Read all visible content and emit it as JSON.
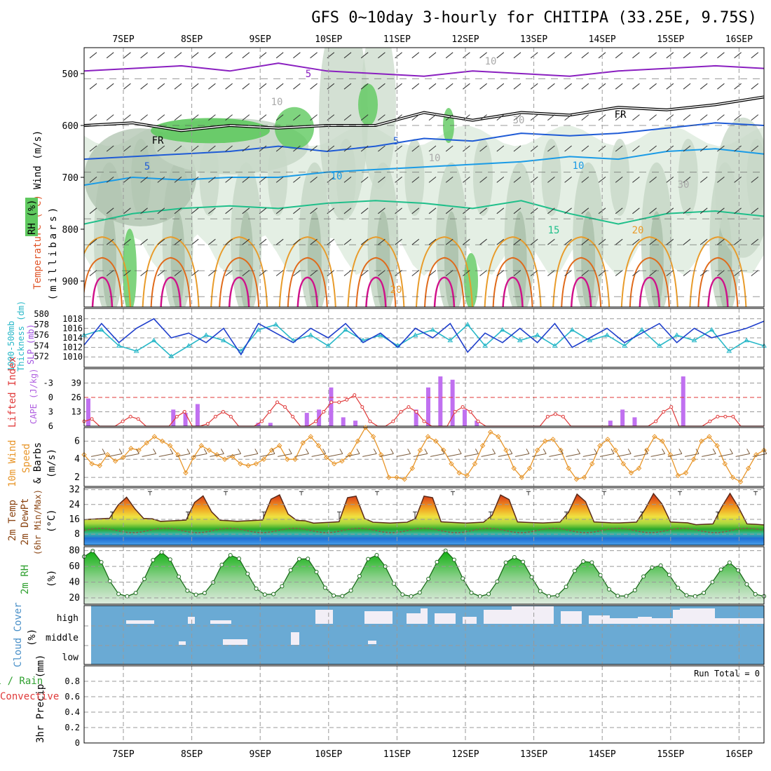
{
  "title": "GFS 0~10day 3-hourly for CHITIPA (33.25E, 9.75S)",
  "dates": [
    "7SEP",
    "8SEP",
    "9SEP",
    "10SEP",
    "11SEP",
    "12SEP",
    "13SEP",
    "14SEP",
    "15SEP",
    "16SEP"
  ],
  "colors": {
    "rh_dark": "#a9bfa9",
    "rh_mid": "#c8d8c8",
    "rh_light": "#e4efe4",
    "rh_green": "#5fc95f",
    "temp_purple": "#8a1fc0",
    "temp_blue": "#1f5bd6",
    "temp_lightblue": "#1a9be6",
    "temp_teal": "#1fbf8a",
    "temp_orange": "#e89b2a",
    "temp_darkorange": "#e06a1a",
    "temp_magenta": "#d0108a",
    "slp": "#1f3fcc",
    "thickness": "#28b8c8",
    "cape": "#c070f0",
    "lifted_index": "#e03a3a",
    "wind10": "#e8962a",
    "cloud": "#6aaad4",
    "rh2m": "#2fc02f"
  },
  "panels": {
    "upper": {
      "y_label_wind": "Wind (m/s)",
      "y_label_temp": "Temperature (°C)",
      "y_label_mb": "(millibars)",
      "y_label_rh": "RH (%)",
      "contour_labels": [
        "5",
        "5",
        "5",
        "10",
        "10",
        "10",
        "15",
        "20",
        "20",
        "FR",
        "FR",
        "30",
        "30",
        "10",
        "10"
      ]
    },
    "slp": {
      "label_thk1": "1000-500mb",
      "label_thk2": "Thickness (dm)",
      "label_slp": "SLP (mb)"
    },
    "cape": {
      "label_li": "Lifted Index",
      "label_cape": "CAPE (J/kg)"
    },
    "wind10": {
      "label1": "10m Wind",
      "label2": "Speed",
      "label3": "& Barbs",
      "label4": "(m/s)"
    },
    "temp2m": {
      "label1": "2m Temp",
      "label2": "2m DewPt",
      "label3": "(6hr Min/Max)",
      "label4": "(°C)"
    },
    "rh2m": {
      "label1": "2m RH",
      "label2": "(%)"
    },
    "cloud": {
      "label1": "Cloud Cover",
      "label2": "(%)"
    },
    "precip": {
      "label1": "3hr Precip (mm)",
      "label2": "Total / Rain",
      "label3": "Convective",
      "run_total": "Run Total = 0"
    }
  },
  "chart_data": [
    {
      "type": "heatmap",
      "title": "Upper air: RH shading, temperature contours, wind barbs",
      "ylabel": "millibars",
      "y_ticks": [
        500,
        600,
        700,
        800,
        900
      ],
      "ylim": [
        450,
        950
      ],
      "isotherms": [
        {
          "name": "-5",
          "level_mb": [
            495,
            490,
            485,
            495,
            480,
            495,
            500,
            505,
            495,
            500,
            505,
            495,
            490,
            485,
            490
          ]
        },
        {
          "name": "FR",
          "level_mb": [
            600,
            595,
            610,
            600,
            605,
            600,
            600,
            575,
            590,
            575,
            580,
            565,
            570,
            560,
            545
          ]
        },
        {
          "name": "5",
          "level_mb": [
            665,
            660,
            655,
            650,
            640,
            650,
            640,
            625,
            630,
            615,
            620,
            615,
            605,
            595,
            600
          ]
        },
        {
          "name": "10",
          "level_mb": [
            715,
            700,
            705,
            700,
            700,
            690,
            685,
            680,
            675,
            670,
            660,
            665,
            650,
            645,
            655
          ]
        },
        {
          "name": "15",
          "level_mb": [
            790,
            770,
            760,
            755,
            760,
            750,
            745,
            750,
            760,
            745,
            770,
            790,
            770,
            765,
            775
          ]
        }
      ]
    },
    {
      "type": "line",
      "title": "SLP and 1000-500mb thickness",
      "series": [
        {
          "name": "SLP (mb)",
          "values": [
            1012.5,
            1017,
            1013,
            1016,
            1018,
            1014,
            1015,
            1013,
            1016,
            1010.5,
            1017,
            1015,
            1013,
            1016,
            1014,
            1017,
            1013,
            1015,
            1012,
            1016,
            1014,
            1017,
            1011,
            1015,
            1013,
            1016,
            1013,
            1017,
            1012,
            1014,
            1016,
            1013,
            1015,
            1017,
            1013,
            1016,
            1014,
            1015,
            1016,
            1017.5
          ]
        },
        {
          "name": "1000-500mb Thickness (dm)",
          "values": [
            576,
            577,
            574,
            573,
            575,
            572,
            574,
            576,
            575,
            573,
            577,
            578,
            575,
            576,
            574,
            577,
            575,
            576,
            574,
            576,
            577,
            575,
            578,
            574,
            577,
            575,
            576,
            574,
            577,
            575,
            576,
            574,
            577,
            574,
            576,
            575,
            577,
            573,
            575,
            574
          ]
        }
      ],
      "y_ticks_slp": [
        1010,
        1012,
        1014,
        1016,
        1018
      ],
      "y_ticks_thk": [
        572,
        574,
        576,
        578,
        580
      ]
    },
    {
      "type": "bar",
      "title": "CAPE and Lifted Index",
      "y_ticks_cape": [
        13,
        26,
        39
      ],
      "y_ticks_li": [
        -3,
        0,
        3,
        6
      ],
      "cape_values": [
        25,
        0,
        0,
        0,
        0,
        0,
        0,
        15,
        12,
        20,
        0,
        0,
        0,
        0,
        3,
        3,
        0,
        0,
        12,
        15,
        35,
        8,
        5,
        0,
        0,
        0,
        0,
        15,
        35,
        45,
        42,
        15,
        5,
        0,
        0,
        0,
        0,
        0,
        0,
        0,
        0,
        0,
        0,
        5,
        15,
        8,
        0,
        0,
        0,
        45,
        0,
        0,
        0,
        0,
        0,
        0
      ]
    },
    {
      "type": "line",
      "title": "10m Wind Speed",
      "ylim": [
        1,
        7.5
      ],
      "y_ticks": [
        2,
        4,
        6
      ],
      "values": [
        4.5,
        3.5,
        3.3,
        4.5,
        3.8,
        4.2,
        5.2,
        5,
        5.8,
        6.5,
        6,
        5.5,
        4.5,
        2.5,
        4.2,
        5.5,
        5,
        4.5,
        4,
        4.3,
        3.5,
        3.3,
        3.5,
        4,
        5,
        5.5,
        4,
        4,
        5.8,
        6.5,
        5.5,
        4.2,
        3.5,
        3.8,
        4.5,
        6,
        7.5,
        6.5,
        4.5,
        2,
        2,
        1.8,
        3,
        5,
        6.5,
        6,
        5,
        3.5,
        2.5,
        2.2,
        3.5,
        5.5,
        7,
        6.5,
        5,
        3,
        2,
        3,
        5,
        6,
        6.2,
        5,
        3,
        1.8,
        2,
        3.5,
        5.5,
        6.2,
        5,
        3.5,
        2.5,
        3,
        5,
        6.5,
        6,
        4.5,
        2.2,
        2.5,
        4,
        6,
        6.5,
        5.5,
        3.5,
        2,
        1.5,
        3,
        4.5,
        5
      ]
    },
    {
      "type": "area",
      "title": "2m Temperature and Dew Point",
      "ylim": [
        2,
        33
      ],
      "y_ticks": [
        8,
        16,
        24,
        32
      ],
      "temp_daily_max": [
        28,
        29,
        30,
        30,
        30,
        30,
        30,
        30,
        30
      ],
      "temp_daily_min": [
        16,
        15,
        15,
        14,
        14,
        14,
        14,
        14,
        13
      ],
      "dewpoint_approx": 10
    },
    {
      "type": "area",
      "title": "2m RH",
      "ylim": [
        12,
        85
      ],
      "y_ticks": [
        20,
        40,
        60,
        80
      ],
      "daily_max": [
        80,
        78,
        75,
        72,
        75,
        80,
        72,
        68,
        62,
        65
      ],
      "daily_min": [
        22,
        24,
        24,
        22,
        22,
        22,
        22,
        22,
        22,
        22
      ]
    },
    {
      "type": "bar",
      "title": "Cloud Cover",
      "categories": [
        "high",
        "middle",
        "low"
      ]
    },
    {
      "type": "bar",
      "title": "3hr Precip",
      "y_ticks": [
        0,
        0.2,
        0.4,
        0.6,
        0.8
      ],
      "ylim": [
        0,
        1
      ]
    }
  ]
}
